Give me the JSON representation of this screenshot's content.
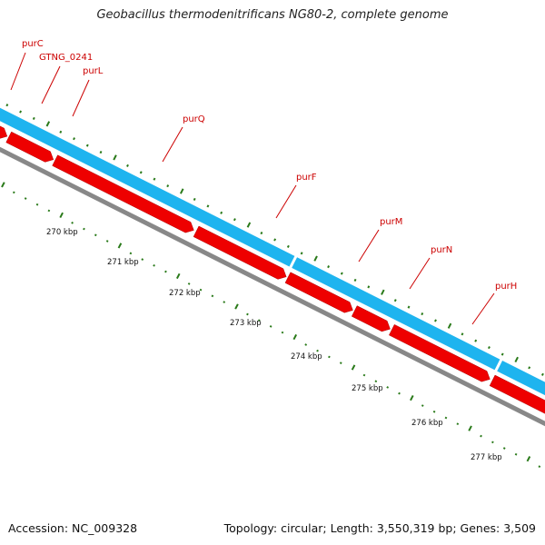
{
  "title": "Geobacillus thermodenitrificans NG80-2, complete genome",
  "footer": {
    "accession": "Accession: NC_009328",
    "topology": "Topology: circular; Length: 3,550,319 bp; Genes: 3,509"
  },
  "colors": {
    "forward_strand": "#1eb4ef",
    "gene": "#ee0000",
    "backbone": "#888888",
    "tick": "#2a7a1a",
    "label": "#cc0000"
  },
  "scale_labels": [
    "270 kbp",
    "271 kbp",
    "272 kbp",
    "273 kbp",
    "274 kbp",
    "275 kbp",
    "276 kbp",
    "277 kbp"
  ],
  "genes": [
    {
      "name": "purC"
    },
    {
      "name": "GTNG_0241"
    },
    {
      "name": "purL"
    },
    {
      "name": "purQ"
    },
    {
      "name": "purF"
    },
    {
      "name": "purM"
    },
    {
      "name": "purN"
    },
    {
      "name": "purH"
    }
  ]
}
